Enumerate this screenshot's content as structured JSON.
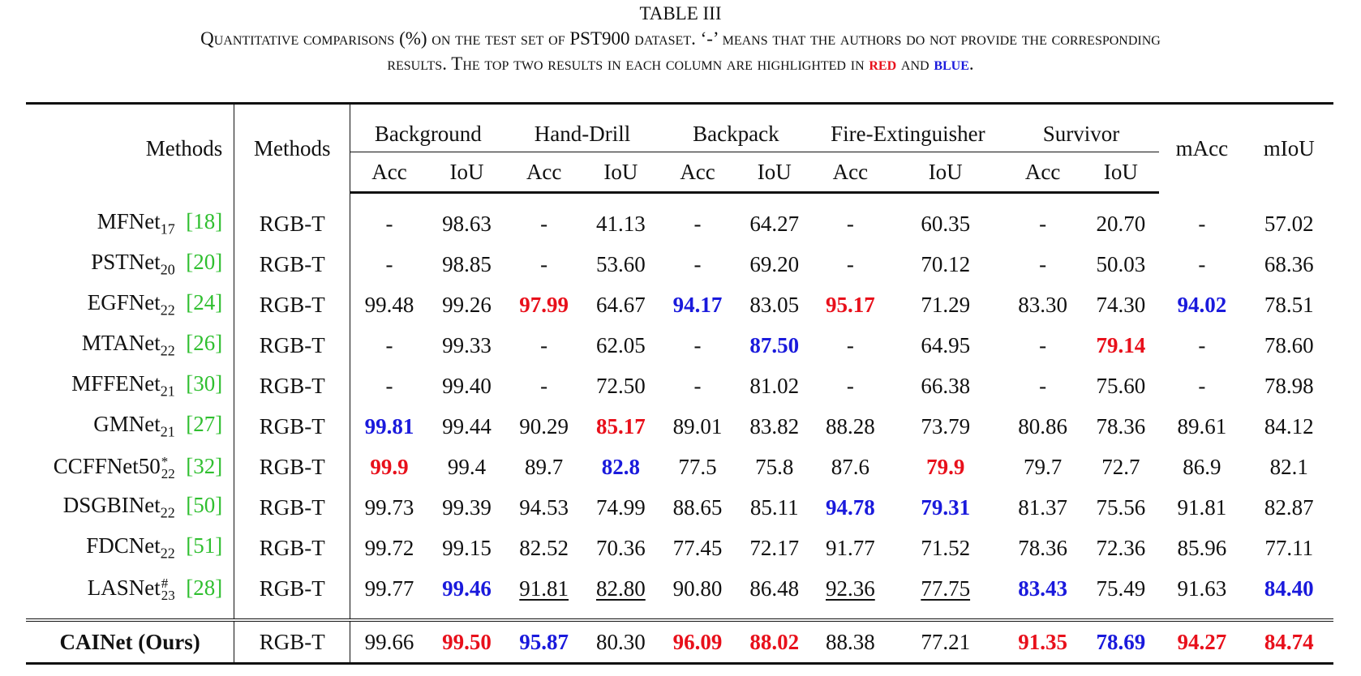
{
  "caption": {
    "label": "TABLE III",
    "line1": "Quantitative comparisons (%) on the test set of PST900 dataset. ‘-’ means that the authors do not provide the corresponding",
    "line2_a": "results. The top two results in each column are highlighted in",
    "red_word": "red",
    "line2_b": "and",
    "blue_word": "blue",
    "line2_c": "."
  },
  "header": {
    "col1": "Methods",
    "col2": "Methods",
    "groups": [
      "Background",
      "Hand-Drill",
      "Backpack",
      "Fire-Extinguisher",
      "Survivor"
    ],
    "sub": [
      "Acc",
      "IoU"
    ],
    "macc": "mAcc",
    "miou": "mIoU"
  },
  "colors": {
    "best": "#e8101b",
    "second": "#1a1adc",
    "citation": "#2fbf2f"
  },
  "rows": [
    {
      "name": "MFNet",
      "sub": "17",
      "sup": "",
      "cite": "[18]",
      "modality": "RGB-T",
      "values": [
        "-",
        "98.63",
        "-",
        "41.13",
        "-",
        "64.27",
        "-",
        "60.35",
        "-",
        "20.70",
        "-",
        "57.02"
      ]
    },
    {
      "name": "PSTNet",
      "sub": "20",
      "sup": "",
      "cite": "[20]",
      "modality": "RGB-T",
      "values": [
        "-",
        "98.85",
        "-",
        "53.60",
        "-",
        "69.20",
        "-",
        "70.12",
        "-",
        "50.03",
        "-",
        "68.36"
      ]
    },
    {
      "name": "EGFNet",
      "sub": "22",
      "sup": "",
      "cite": "[24]",
      "modality": "RGB-T",
      "values": [
        "99.48",
        "99.26",
        "97.99",
        "64.67",
        "94.17",
        "83.05",
        "95.17",
        "71.29",
        "83.30",
        "74.30",
        "94.02",
        "78.51"
      ]
    },
    {
      "name": "MTANet",
      "sub": "22",
      "sup": "",
      "cite": "[26]",
      "modality": "RGB-T",
      "values": [
        "-",
        "99.33",
        "-",
        "62.05",
        "-",
        "87.50",
        "-",
        "64.95",
        "-",
        "79.14",
        "-",
        "78.60"
      ]
    },
    {
      "name": "MFFENet",
      "sub": "21",
      "sup": "",
      "cite": "[30]",
      "modality": "RGB-T",
      "values": [
        "-",
        "99.40",
        "-",
        "72.50",
        "-",
        "81.02",
        "-",
        "66.38",
        "-",
        "75.60",
        "-",
        "78.98"
      ]
    },
    {
      "name": "GMNet",
      "sub": "21",
      "sup": "",
      "cite": "[27]",
      "modality": "RGB-T",
      "values": [
        "99.81",
        "99.44",
        "90.29",
        "85.17",
        "89.01",
        "83.82",
        "88.28",
        "73.79",
        "80.86",
        "78.36",
        "89.61",
        "84.12"
      ]
    },
    {
      "name": "CCFFNet50",
      "sub": "22",
      "sup": "*",
      "cite": "[32]",
      "modality": "RGB-T",
      "values": [
        "99.9",
        "99.4",
        "89.7",
        "82.8",
        "77.5",
        "75.8",
        "87.6",
        "79.9",
        "79.7",
        "72.7",
        "86.9",
        "82.1"
      ]
    },
    {
      "name": "DSGBINet",
      "sub": "22",
      "sup": "",
      "cite": "[50]",
      "modality": "RGB-T",
      "values": [
        "99.73",
        "99.39",
        "94.53",
        "74.99",
        "88.65",
        "85.11",
        "94.78",
        "79.31",
        "81.37",
        "75.56",
        "91.81",
        "82.87"
      ]
    },
    {
      "name": "FDCNet",
      "sub": "22",
      "sup": "",
      "cite": "[51]",
      "modality": "RGB-T",
      "values": [
        "99.72",
        "99.15",
        "82.52",
        "70.36",
        "77.45",
        "72.17",
        "91.77",
        "71.52",
        "78.36",
        "72.36",
        "85.96",
        "77.11"
      ]
    },
    {
      "name": "LASNet",
      "sub": "23",
      "sup": "#",
      "cite": "[28]",
      "modality": "RGB-T",
      "values": [
        "99.77",
        "99.46",
        "91.81",
        "82.80",
        "90.80",
        "86.48",
        "92.36",
        "77.75",
        "83.43",
        "75.49",
        "91.63",
        "84.40"
      ]
    }
  ],
  "ours": {
    "name": "CAINet (Ours)",
    "modality": "RGB-T",
    "values": [
      "99.66",
      "99.50",
      "95.87",
      "80.30",
      "96.09",
      "88.02",
      "88.38",
      "77.21",
      "91.35",
      "78.69",
      "94.27",
      "84.74"
    ]
  }
}
